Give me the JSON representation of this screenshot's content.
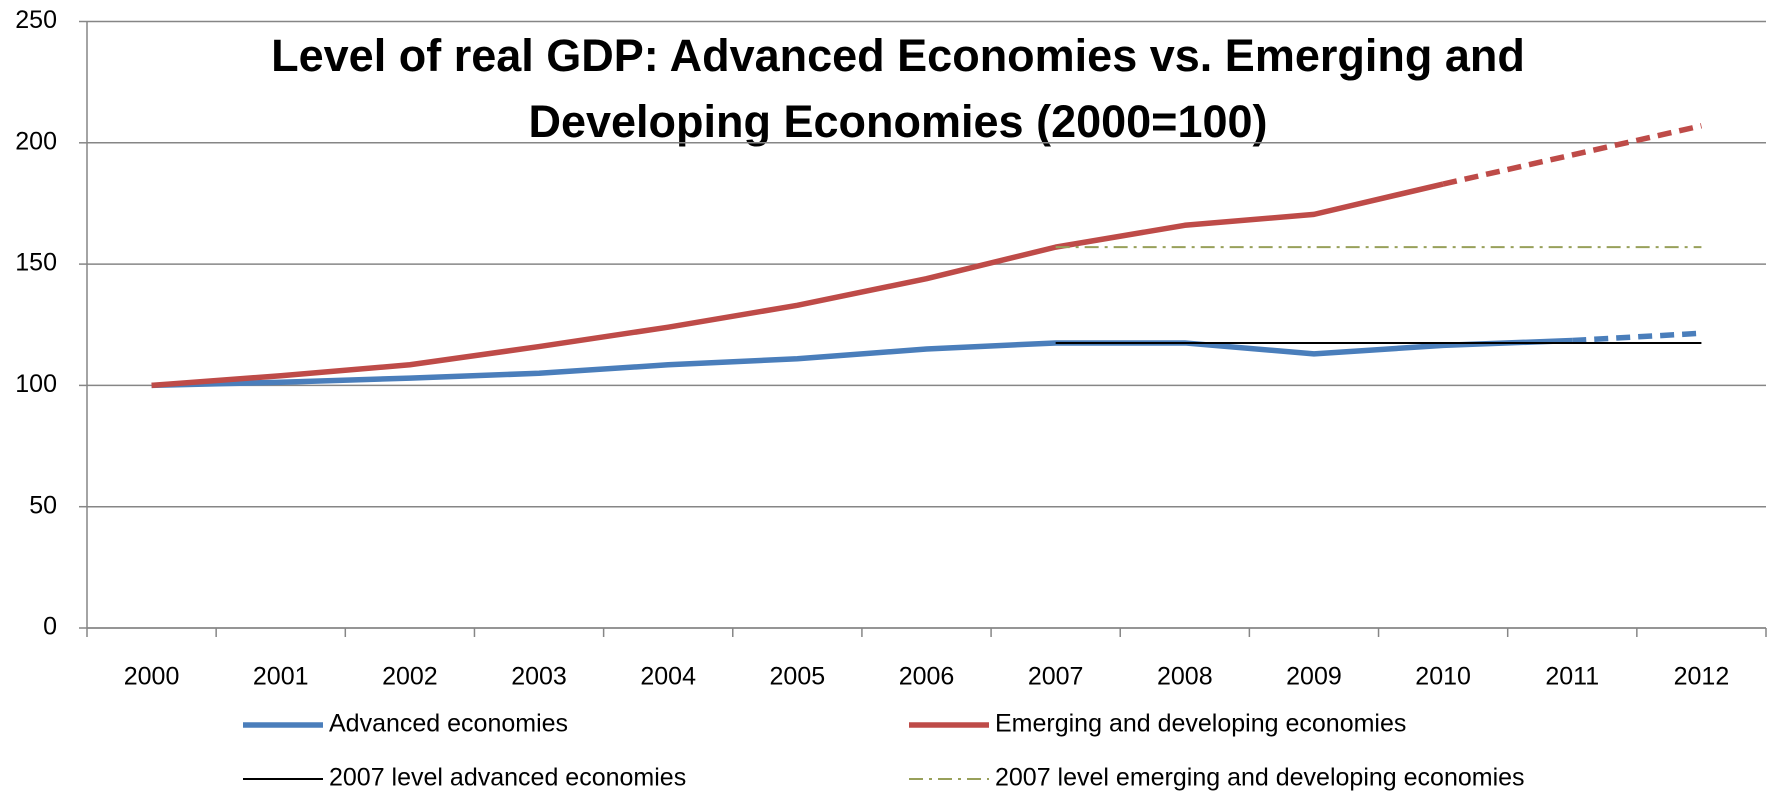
{
  "chart_data": {
    "type": "line",
    "title": [
      "Level of real GDP: Advanced Economies vs. Emerging and",
      "Developing Economies (2000=100)"
    ],
    "categories": [
      "2000",
      "2001",
      "2002",
      "2003",
      "2004",
      "2005",
      "2006",
      "2007",
      "2008",
      "2009",
      "2010",
      "2011",
      "2012"
    ],
    "series": [
      {
        "name": "Advanced economies",
        "color": "#4a7ebb",
        "width": 5.5,
        "style": "solid",
        "dash_from": 11,
        "values": [
          100,
          101.3,
          103,
          105,
          108.5,
          111,
          115,
          117.5,
          117.5,
          113,
          116.5,
          118.5,
          121.5
        ]
      },
      {
        "name": "Emerging and developing economies",
        "color": "#be4b48",
        "width": 5.5,
        "style": "solid",
        "dash_from": 10,
        "values": [
          100,
          104,
          108.5,
          116,
          124,
          133,
          144,
          157,
          166,
          170.5,
          183,
          195,
          207
        ]
      },
      {
        "name": "2007 level advanced economies",
        "color": "#000000",
        "width": 2,
        "style": "solid",
        "values": [
          null,
          null,
          null,
          null,
          null,
          null,
          null,
          117.5,
          117.5,
          117.5,
          117.5,
          117.5,
          117.5
        ]
      },
      {
        "name": "2007 level emerging and developing economies",
        "color": "#98a05a",
        "width": 2,
        "style": "dash-dot",
        "values": [
          null,
          null,
          null,
          null,
          null,
          null,
          null,
          157,
          157,
          157,
          157,
          157,
          157
        ]
      }
    ],
    "ylim": [
      0,
      250
    ],
    "yticks": [
      0,
      50,
      100,
      150,
      200,
      250
    ],
    "grid": true,
    "legend": "bottom"
  }
}
